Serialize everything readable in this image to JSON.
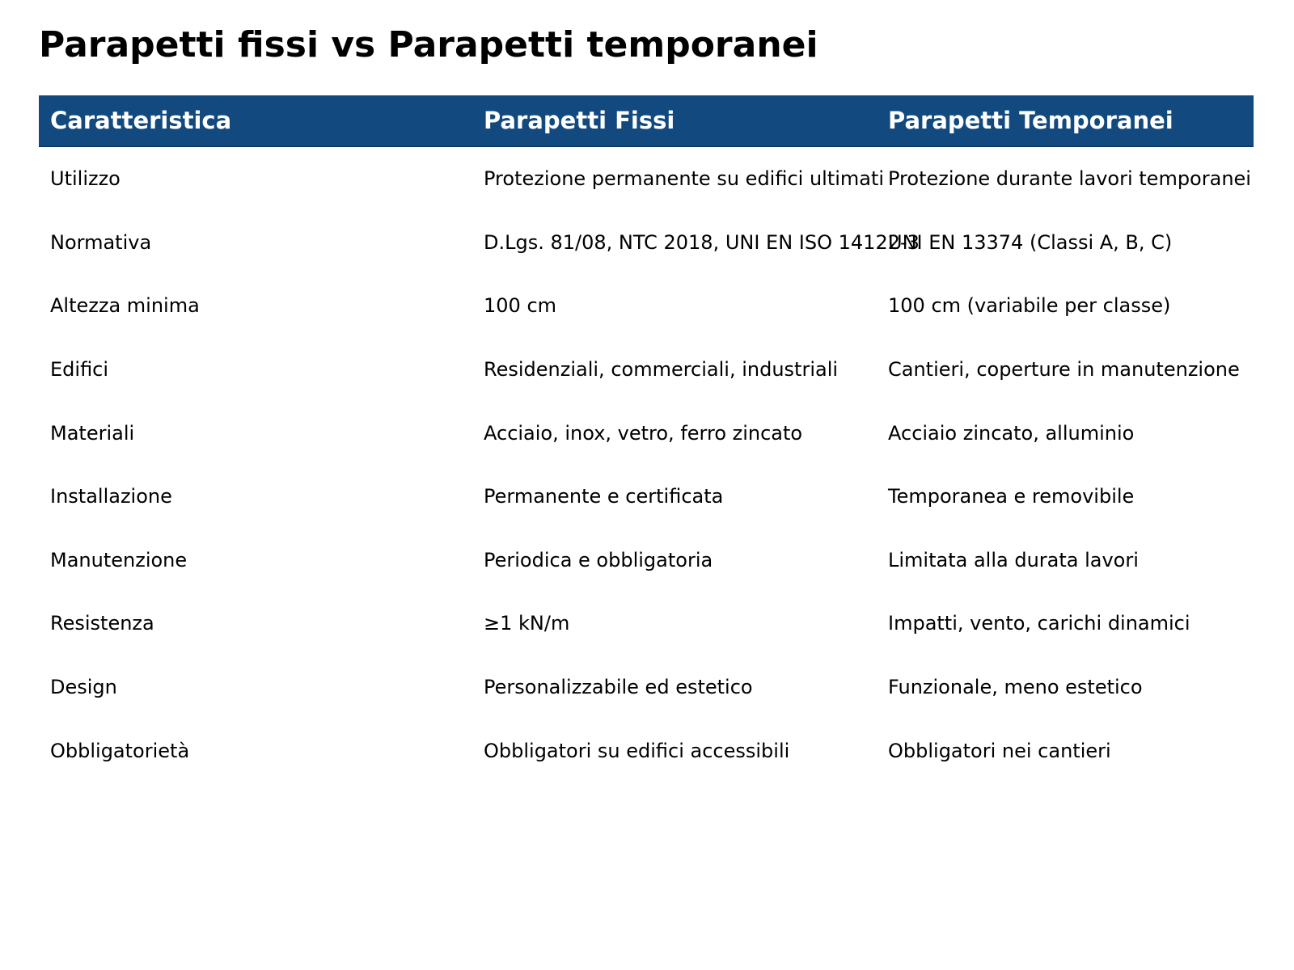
{
  "title": "Parapetti fissi vs Parapetti temporanei",
  "colors": {
    "header_bg": "#12497E",
    "header_border": "#0d3c6b",
    "header_text": "#ffffff",
    "body_text": "#000000",
    "background": "#ffffff"
  },
  "chart_data": {
    "type": "table",
    "title": "Parapetti fissi vs Parapetti temporanei",
    "columns": [
      "Caratteristica",
      "Parapetti Fissi",
      "Parapetti Temporanei"
    ],
    "rows": [
      [
        "Utilizzo",
        "Protezione permanente su edifici ultimati",
        "Protezione durante lavori temporanei"
      ],
      [
        "Normativa",
        "D.Lgs. 81/08, NTC 2018, UNI EN ISO 14122-3",
        "UNI EN 13374 (Classi A, B, C)"
      ],
      [
        "Altezza minima",
        "100 cm",
        "100 cm (variabile per classe)"
      ],
      [
        "Edifici",
        "Residenziali, commerciali, industriali",
        "Cantieri, coperture in manutenzione"
      ],
      [
        "Materiali",
        "Acciaio, inox, vetro, ferro zincato",
        "Acciaio zincato, alluminio"
      ],
      [
        "Installazione",
        "Permanente e certificata",
        "Temporanea e removibile"
      ],
      [
        "Manutenzione",
        "Periodica e obbligatoria",
        "Limitata alla durata lavori"
      ],
      [
        "Resistenza",
        "≥1 kN/m",
        "Impatti, vento, carichi dinamici"
      ],
      [
        "Design",
        "Personalizzabile ed estetico",
        "Funzionale, meno estetico"
      ],
      [
        "Obbligatorietà",
        "Obbligatori su edifici accessibili",
        "Obbligatori nei cantieri"
      ]
    ],
    "legend": null,
    "grid": false
  }
}
